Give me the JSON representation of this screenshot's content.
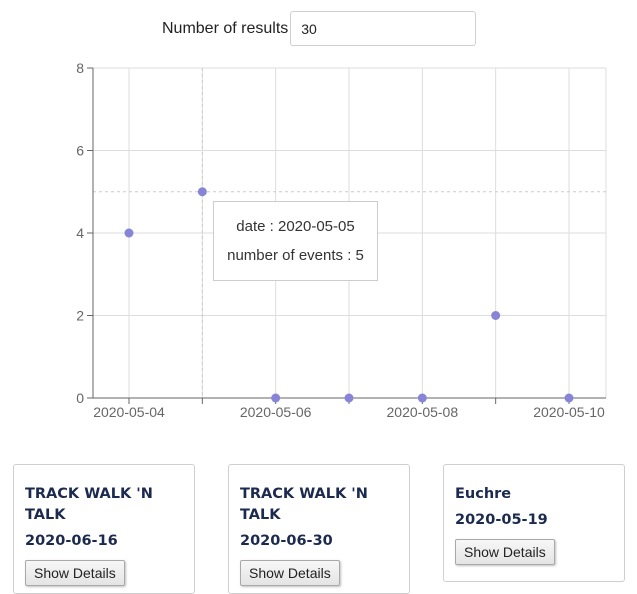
{
  "controls": {
    "results_label": "Number of results",
    "results_value": "30"
  },
  "tooltip": {
    "date_line": "date : 2020-05-05",
    "count_line": "number of events : 5"
  },
  "chart_data": {
    "type": "scatter",
    "x": [
      "2020-05-04",
      "2020-05-05",
      "2020-05-06",
      "2020-05-07",
      "2020-05-08",
      "2020-05-09",
      "2020-05-10"
    ],
    "y": [
      4,
      5,
      0,
      0,
      0,
      2,
      0
    ],
    "x_ticks": [
      "2020-05-04",
      "2020-05-06",
      "2020-05-08",
      "2020-05-10"
    ],
    "y_ticks": [
      "0",
      "2",
      "4",
      "6",
      "8"
    ],
    "ylim": [
      0,
      8
    ],
    "grid": true,
    "point_color": "#8884d8",
    "highlighted": "2020-05-05"
  },
  "cards": [
    {
      "title_line1": "TRACK WALK 'N",
      "title_line2": "TALK",
      "date": "2020-06-16",
      "button": "Show Details"
    },
    {
      "title_line1": "TRACK WALK 'N",
      "title_line2": "TALK",
      "date": "2020-06-30",
      "button": "Show Details"
    },
    {
      "title_line1": "Euchre",
      "title_line2": "",
      "date": "2020-05-19",
      "button": "Show Details"
    }
  ]
}
